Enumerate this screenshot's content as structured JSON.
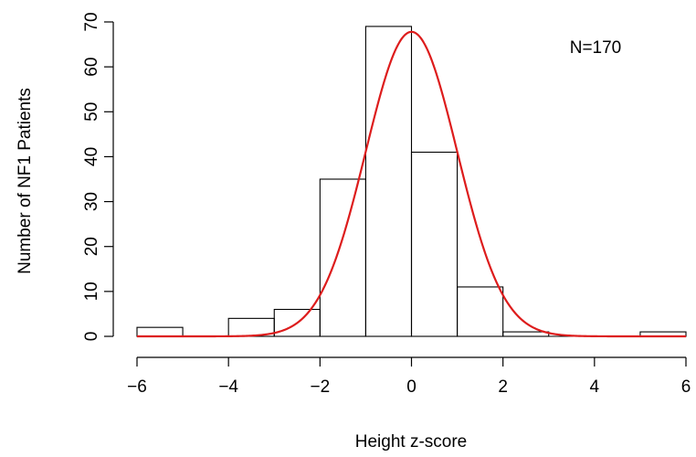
{
  "chart_data": {
    "type": "bar",
    "xlabel": "Height z-score",
    "ylabel": "Number of NF1 Patients",
    "annotation": "N=170",
    "xlim": [
      -6,
      6
    ],
    "ylim": [
      0,
      70
    ],
    "x_ticks": [
      -6,
      -4,
      -2,
      0,
      2,
      4,
      6
    ],
    "x_tick_labels": [
      "−6",
      "−4",
      "−2",
      "0",
      "2",
      "4",
      "6"
    ],
    "y_ticks": [
      0,
      10,
      20,
      30,
      40,
      50,
      60,
      70
    ],
    "y_tick_labels": [
      "0",
      "10",
      "20",
      "30",
      "40",
      "50",
      "60",
      "70"
    ],
    "bins": [
      {
        "x0": -6,
        "x1": -5,
        "count": 2
      },
      {
        "x0": -5,
        "x1": -4,
        "count": 0
      },
      {
        "x0": -4,
        "x1": -3,
        "count": 4
      },
      {
        "x0": -3,
        "x1": -2,
        "count": 6
      },
      {
        "x0": -2,
        "x1": -1,
        "count": 35
      },
      {
        "x0": -1,
        "x1": 0,
        "count": 69
      },
      {
        "x0": 0,
        "x1": 1,
        "count": 41
      },
      {
        "x0": 1,
        "x1": 2,
        "count": 11
      },
      {
        "x0": 2,
        "x1": 3,
        "count": 1
      },
      {
        "x0": 3,
        "x1": 4,
        "count": 0
      },
      {
        "x0": 4,
        "x1": 5,
        "count": 0
      },
      {
        "x0": 5,
        "x1": 6,
        "count": 1
      }
    ],
    "curve": {
      "type": "normal",
      "mean": 0,
      "sd": 1,
      "peak": 67.8,
      "color": "#dd1c1c"
    },
    "grid": false
  }
}
